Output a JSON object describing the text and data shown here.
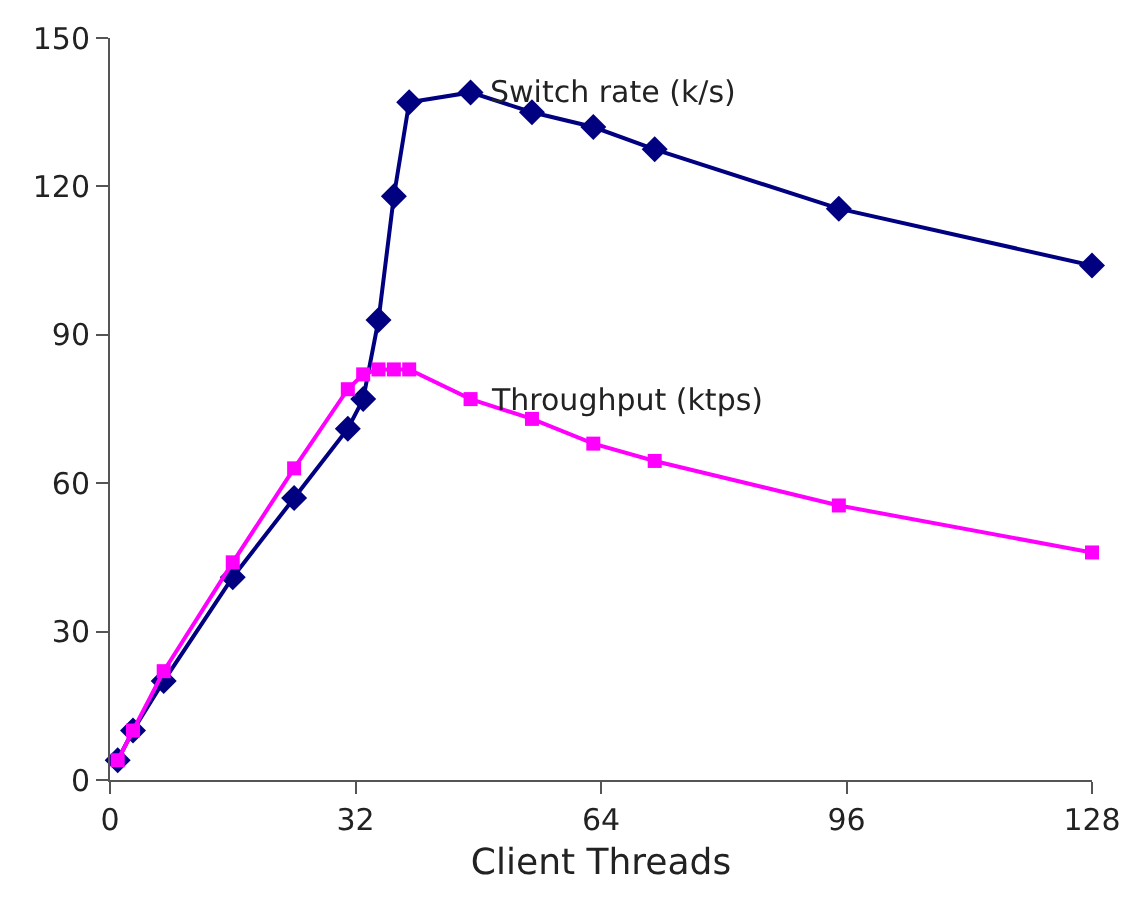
{
  "chart_data": {
    "type": "line",
    "xlabel": "Client Threads",
    "xlim": [
      0,
      128
    ],
    "xticks": [
      0,
      32,
      64,
      96,
      128
    ],
    "ylim": [
      0,
      150
    ],
    "yticks": [
      0,
      30,
      60,
      90,
      120,
      150
    ],
    "grid": false,
    "legend": false,
    "x": [
      1,
      3,
      7,
      16,
      24,
      31,
      33,
      35,
      37,
      39,
      47,
      55,
      63,
      71,
      95,
      128
    ],
    "series": [
      {
        "name": "Switch rate (k/s)",
        "color": "#000080",
        "marker": "diamond",
        "values": [
          4,
          10,
          20,
          41,
          57,
          71,
          77,
          93,
          118,
          137,
          139,
          135,
          132,
          127.5,
          115.5,
          104
        ]
      },
      {
        "name": "Throughput (ktps)",
        "color": "#ff00ff",
        "marker": "square",
        "values": [
          4,
          10,
          22,
          44,
          63,
          79,
          82,
          83,
          83,
          83,
          77,
          73,
          68,
          64.5,
          55.5,
          46
        ]
      }
    ]
  }
}
